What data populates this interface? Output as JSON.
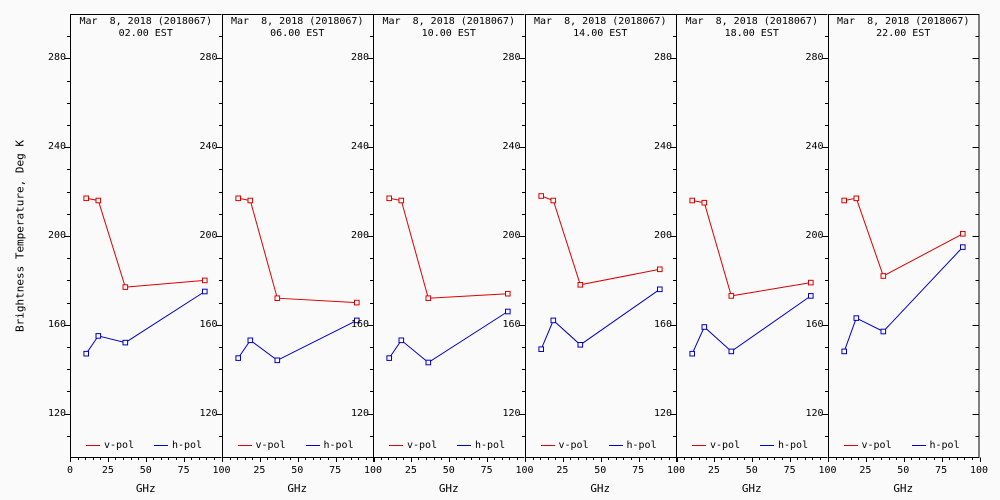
{
  "figure": {
    "background": "#fafafa",
    "axis_color": "#000000"
  },
  "chart_data": {
    "type": "line",
    "layout": "six adjacent panels sharing vertical axes, common y scale",
    "title_line1_all_panels": "Mar  8, 2018 (2018067)",
    "ylabel": "Brightness Temperature, Deg K",
    "xlabel": "GHz",
    "xlim": [
      0,
      100
    ],
    "ylim": [
      100,
      300
    ],
    "x_ticks": [
      0,
      25,
      50,
      75,
      100
    ],
    "x_minor_step": 5,
    "y_ticks": [
      120,
      160,
      200,
      240,
      280
    ],
    "y_minor_step": 10,
    "grid": false,
    "legend_position": "inside bottom of every panel",
    "legend": [
      {
        "name": "v-pol",
        "color": "#dd0000"
      },
      {
        "name": "h-pol",
        "color": "#0000cc"
      }
    ],
    "x": [
      10.7,
      18.7,
      36.5,
      89
    ],
    "panels": [
      {
        "title_line1": "Mar  8, 2018 (2018067)",
        "title_line2": "02.00 EST",
        "series": [
          {
            "name": "v-pol",
            "color": "#dd0000",
            "values": [
              217,
              216,
              177,
              180
            ]
          },
          {
            "name": "h-pol",
            "color": "#0000cc",
            "values": [
              147,
              155,
              152,
              175
            ]
          }
        ]
      },
      {
        "title_line1": "Mar  8, 2018 (2018067)",
        "title_line2": "06.00 EST",
        "series": [
          {
            "name": "v-pol",
            "color": "#dd0000",
            "values": [
              217,
              216,
              172,
              170
            ]
          },
          {
            "name": "h-pol",
            "color": "#0000cc",
            "values": [
              145,
              153,
              144,
              162
            ]
          }
        ]
      },
      {
        "title_line1": "Mar  8, 2018 (2018067)",
        "title_line2": "10.00 EST",
        "series": [
          {
            "name": "v-pol",
            "color": "#dd0000",
            "values": [
              217,
              216,
              172,
              174
            ]
          },
          {
            "name": "h-pol",
            "color": "#0000cc",
            "values": [
              145,
              153,
              143,
              166
            ]
          }
        ]
      },
      {
        "title_line1": "Mar  8, 2018 (2018067)",
        "title_line2": "14.00 EST",
        "series": [
          {
            "name": "v-pol",
            "color": "#dd0000",
            "values": [
              218,
              216,
              178,
              185
            ]
          },
          {
            "name": "h-pol",
            "color": "#0000cc",
            "values": [
              149,
              162,
              151,
              176
            ]
          }
        ]
      },
      {
        "title_line1": "Mar  8, 2018 (2018067)",
        "title_line2": "18.00 EST",
        "series": [
          {
            "name": "v-pol",
            "color": "#dd0000",
            "values": [
              216,
              215,
              173,
              179
            ]
          },
          {
            "name": "h-pol",
            "color": "#0000cc",
            "values": [
              147,
              159,
              148,
              173
            ]
          }
        ]
      },
      {
        "title_line1": "Mar  8, 2018 (2018067)",
        "title_line2": "22.00 EST",
        "series": [
          {
            "name": "v-pol",
            "color": "#dd0000",
            "values": [
              216,
              217,
              182,
              201
            ]
          },
          {
            "name": "h-pol",
            "color": "#0000cc",
            "values": [
              148,
              163,
              157,
              195
            ]
          }
        ]
      }
    ]
  }
}
